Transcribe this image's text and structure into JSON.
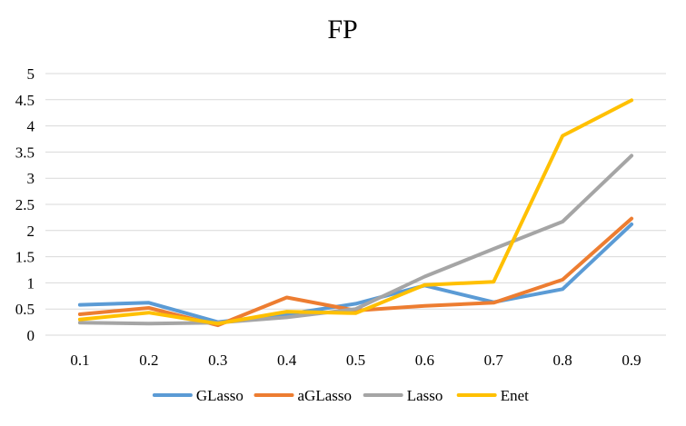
{
  "chart_data": {
    "type": "line",
    "title": "FP",
    "xlabel": "",
    "ylabel": "",
    "categories": [
      "0.1",
      "0.2",
      "0.3",
      "0.4",
      "0.5",
      "0.6",
      "0.7",
      "0.8",
      "0.9"
    ],
    "y_ticks": [
      "0",
      "0.5",
      "1",
      "1.5",
      "2",
      "2.5",
      "3",
      "3.5",
      "4",
      "4.5",
      "5"
    ],
    "ylim": [
      0,
      5
    ],
    "grid": true,
    "legend_position": "bottom",
    "series": [
      {
        "name": "GLasso",
        "color": "#5b9bd5",
        "values": [
          0.58,
          0.62,
          0.25,
          0.4,
          0.6,
          0.95,
          0.63,
          0.88,
          2.12
        ]
      },
      {
        "name": "aGLasso",
        "color": "#ed7d31",
        "values": [
          0.4,
          0.52,
          0.19,
          0.72,
          0.47,
          0.56,
          0.62,
          1.06,
          2.23
        ]
      },
      {
        "name": "Lasso",
        "color": "#a5a5a5",
        "values": [
          0.24,
          0.22,
          0.24,
          0.34,
          0.5,
          1.12,
          1.65,
          2.17,
          3.43
        ]
      },
      {
        "name": "Enet",
        "color": "#ffc000",
        "values": [
          0.3,
          0.43,
          0.22,
          0.45,
          0.42,
          0.96,
          1.02,
          3.81,
          4.49
        ]
      }
    ]
  }
}
